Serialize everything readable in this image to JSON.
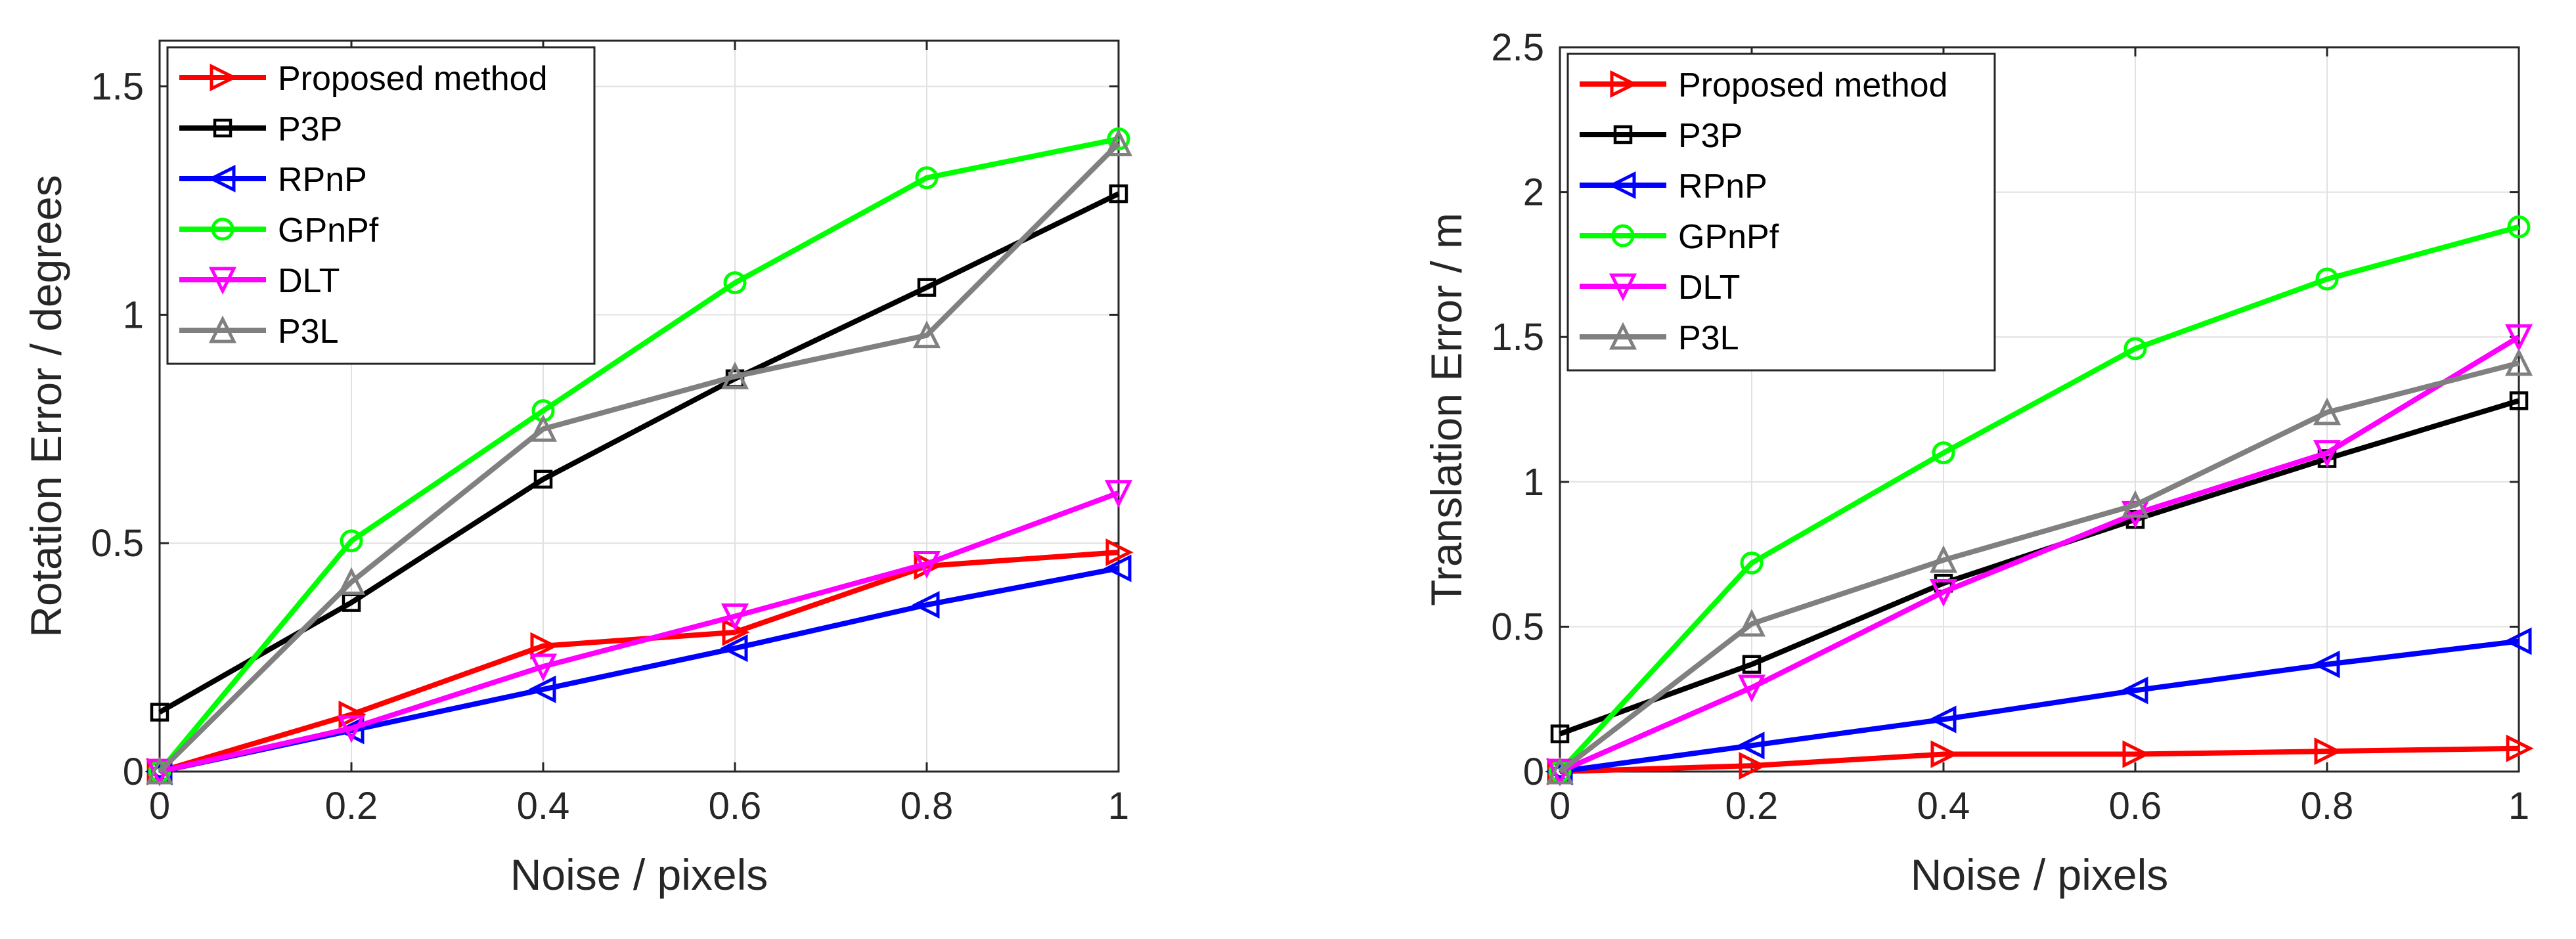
{
  "chart_data": [
    {
      "type": "line",
      "xlabel": "Noise / pixels",
      "ylabel": "Rotation Error / degrees",
      "xlim": [
        0,
        1
      ],
      "ylim": [
        0,
        1.6
      ],
      "grid": true,
      "legend_position": "top-left",
      "x": [
        0,
        0.2,
        0.4,
        0.6,
        0.8,
        1
      ],
      "xticks": [
        "0",
        "0.2",
        "0.4",
        "0.6",
        "0.8",
        "1"
      ],
      "yticks": [
        {
          "value": 0,
          "label": "0"
        },
        {
          "value": 0.5,
          "label": "0.5"
        },
        {
          "value": 1,
          "label": "1"
        },
        {
          "value": 1.5,
          "label": "1.5"
        }
      ],
      "series": [
        {
          "name": "Proposed method",
          "color": "#ff0000",
          "marker": "triangle-right",
          "values": [
            0,
            0.125,
            0.275,
            0.305,
            0.45,
            0.48
          ]
        },
        {
          "name": "P3P",
          "color": "#000000",
          "marker": "square",
          "values": [
            0.13,
            0.37,
            0.64,
            0.86,
            1.06,
            1.265
          ]
        },
        {
          "name": "RPnP",
          "color": "#0000ff",
          "marker": "triangle-left",
          "values": [
            0,
            0.09,
            0.18,
            0.27,
            0.365,
            0.445
          ]
        },
        {
          "name": "GPnPf",
          "color": "#00ff00",
          "marker": "circle",
          "values": [
            0,
            0.505,
            0.79,
            1.07,
            1.3,
            1.385
          ]
        },
        {
          "name": "DLT",
          "color": "#ff00ff",
          "marker": "triangle-down",
          "values": [
            0,
            0.095,
            0.23,
            0.34,
            0.455,
            0.61
          ]
        },
        {
          "name": "P3L",
          "color": "#808080",
          "marker": "triangle-up",
          "values": [
            0,
            0.415,
            0.75,
            0.865,
            0.955,
            1.375
          ]
        }
      ]
    },
    {
      "type": "line",
      "xlabel": "Noise / pixels",
      "ylabel": "Translation Error / m",
      "xlim": [
        0,
        1
      ],
      "ylim": [
        0,
        2.5
      ],
      "grid": true,
      "legend_position": "top-left",
      "x": [
        0,
        0.2,
        0.4,
        0.6,
        0.8,
        1
      ],
      "xticks": [
        "0",
        "0.2",
        "0.4",
        "0.6",
        "0.8",
        "1"
      ],
      "yticks": [
        {
          "value": 0,
          "label": "0"
        },
        {
          "value": 0.5,
          "label": "0.5"
        },
        {
          "value": 1,
          "label": "1"
        },
        {
          "value": 1.5,
          "label": "1.5"
        },
        {
          "value": 2,
          "label": "2"
        },
        {
          "value": 2.5,
          "label": "2.5"
        }
      ],
      "series": [
        {
          "name": "Proposed method",
          "color": "#ff0000",
          "marker": "triangle-right",
          "values": [
            0,
            0.02,
            0.06,
            0.06,
            0.07,
            0.08
          ]
        },
        {
          "name": "P3P",
          "color": "#000000",
          "marker": "square",
          "values": [
            0.13,
            0.37,
            0.65,
            0.87,
            1.08,
            1.28
          ]
        },
        {
          "name": "RPnP",
          "color": "#0000ff",
          "marker": "triangle-left",
          "values": [
            0,
            0.09,
            0.18,
            0.28,
            0.37,
            0.45
          ]
        },
        {
          "name": "GPnPf",
          "color": "#00ff00",
          "marker": "circle",
          "values": [
            0,
            0.72,
            1.1,
            1.46,
            1.7,
            1.88
          ]
        },
        {
          "name": "DLT",
          "color": "#ff00ff",
          "marker": "triangle-down",
          "values": [
            0,
            0.29,
            0.62,
            0.89,
            1.1,
            1.5
          ]
        },
        {
          "name": "P3L",
          "color": "#808080",
          "marker": "triangle-up",
          "values": [
            0,
            0.51,
            0.73,
            0.92,
            1.24,
            1.41
          ]
        }
      ]
    }
  ]
}
